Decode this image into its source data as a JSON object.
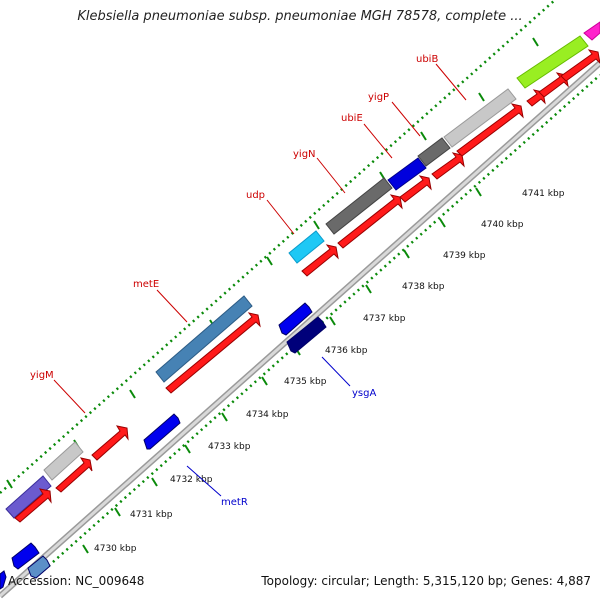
{
  "title": "Klebsiella pneumoniae subsp. pneumoniae MGH 78578, complete ...",
  "footer": {
    "accession": "Accession: NC_009648",
    "summary": "Topology: circular; Length: 5,315,120 bp; Genes: 4,887"
  },
  "colors": {
    "backbone": "#bdbdbd",
    "dots": "#0a8a0a",
    "label_red": "#cc0000",
    "label_blue": "#0000cc",
    "forward_cds": "#ff0000",
    "reverse_cds": "#0000ff"
  },
  "scale_labels": [
    "4730 kbp",
    "4731 kbp",
    "4732 kbp",
    "4733 kbp",
    "4734 kbp",
    "4735 kbp",
    "4736 kbp",
    "4737 kbp",
    "4738 kbp",
    "4739 kbp",
    "4740 kbp",
    "4741 kbp"
  ],
  "gene_labels": {
    "ubiB": "ubiB",
    "yigP": "yigP",
    "ubiE": "ubiE",
    "yigN": "yigN",
    "udp": "udp",
    "metE": "metE",
    "yigM": "yigM",
    "ysgA": "ysgA",
    "metR": "metR"
  }
}
